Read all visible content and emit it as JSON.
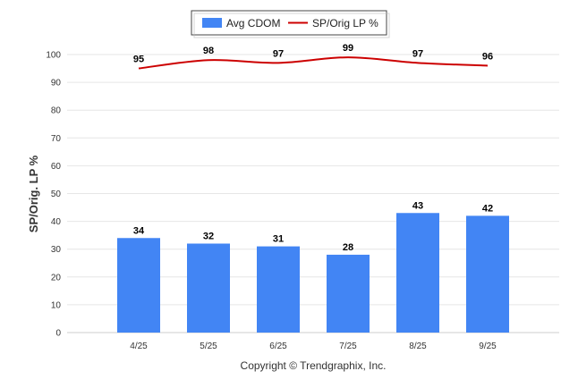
{
  "chart_data": {
    "type": "bar",
    "categories": [
      "4/25",
      "5/25",
      "6/25",
      "7/25",
      "8/25",
      "9/25"
    ],
    "series": [
      {
        "name": "Avg CDOM",
        "type": "bar",
        "values": [
          34,
          32,
          31,
          28,
          43,
          42
        ],
        "color": "#4285f4"
      },
      {
        "name": "SP/Orig LP %",
        "type": "line",
        "values": [
          95,
          98,
          97,
          99,
          97,
          96
        ],
        "color": "#cc0000"
      }
    ],
    "title": "",
    "xlabel": "",
    "ylabel": "SP/Orig. LP %",
    "ylim": [
      0,
      100
    ],
    "yticks": [
      0,
      10,
      20,
      30,
      40,
      50,
      60,
      70,
      80,
      90,
      100
    ],
    "grid": true,
    "legend": "top-center"
  },
  "credit": "Copyright © Trendgraphix, Inc."
}
